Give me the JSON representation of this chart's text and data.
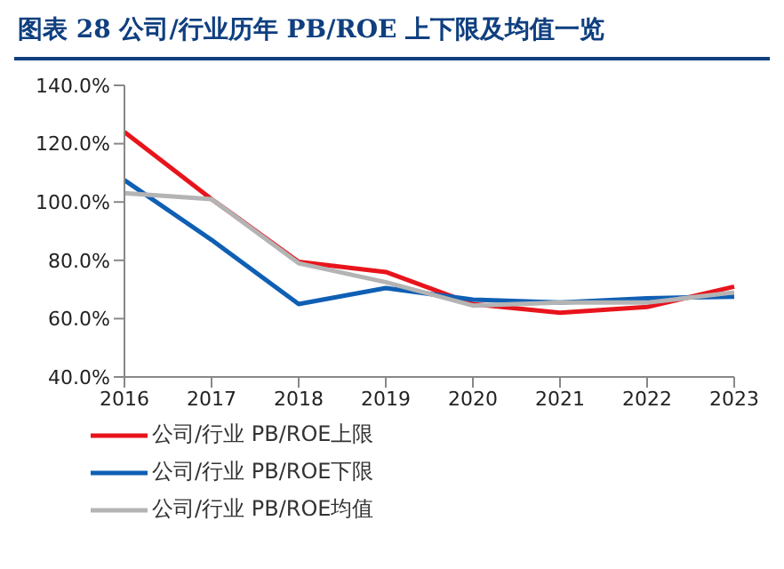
{
  "chart_data": {
    "type": "line",
    "title": "图表 28   公司/行业历年 PB/ROE 上下限及均值一览",
    "categories": [
      "2016",
      "2017",
      "2018",
      "2019",
      "2020",
      "2021",
      "2022",
      "2023"
    ],
    "series": [
      {
        "name": "公司/行业 PB/ROE上限",
        "color": "#e8141c",
        "values": [
          124,
          101,
          79.5,
          76,
          65,
          62,
          64,
          71
        ]
      },
      {
        "name": "公司/行业 PB/ROE下限",
        "color": "#0f5fb4",
        "values": [
          107.5,
          87,
          65,
          70.5,
          66.5,
          65.5,
          67,
          67.5
        ]
      },
      {
        "name": "公司/行业 PB/ROE均值",
        "color": "#b4b4b4",
        "values": [
          103,
          101,
          79,
          72.5,
          64.5,
          65.5,
          65.5,
          69
        ]
      }
    ],
    "ylim": [
      40,
      140
    ],
    "yticks": [
      {
        "value": 40,
        "label": "40.0%"
      },
      {
        "value": 60,
        "label": "60.0%"
      },
      {
        "value": 80,
        "label": "80.0%"
      },
      {
        "value": 100,
        "label": "100.0%"
      },
      {
        "value": 120,
        "label": "120.0%"
      },
      {
        "value": 140,
        "label": "140.0%"
      }
    ],
    "grid": false,
    "legend": "bottom",
    "marker": "none",
    "line_style": "solid"
  }
}
